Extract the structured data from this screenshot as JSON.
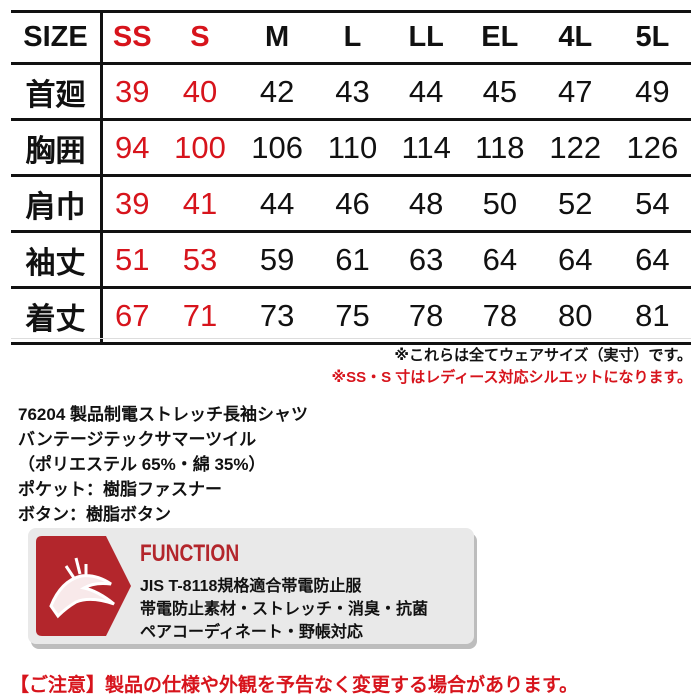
{
  "table": {
    "header": {
      "label": "SIZE",
      "sizes": [
        "SS",
        "S",
        "M",
        "L",
        "LL",
        "EL",
        "4L",
        "5L"
      ]
    },
    "rows": [
      {
        "label": "首廻",
        "values": [
          "39",
          "40",
          "42",
          "43",
          "44",
          "45",
          "47",
          "49"
        ]
      },
      {
        "label": "胸囲",
        "values": [
          "94",
          "100",
          "106",
          "110",
          "114",
          "118",
          "122",
          "126"
        ]
      },
      {
        "label": "肩巾",
        "values": [
          "39",
          "41",
          "44",
          "46",
          "48",
          "50",
          "52",
          "54"
        ]
      },
      {
        "label": "袖丈",
        "values": [
          "51",
          "53",
          "59",
          "61",
          "63",
          "64",
          "64",
          "64"
        ]
      },
      {
        "label": "着丈",
        "values": [
          "67",
          "71",
          "73",
          "75",
          "78",
          "78",
          "80",
          "81"
        ]
      }
    ]
  },
  "notes": {
    "note1": "※これらは全てウェアサイズ（実寸）です。",
    "note2": "※SS・S 寸はレディース対応シルエットになります。"
  },
  "spec": [
    "76204 製品制電ストレッチ長袖シャツ",
    "バンテージテックサマーツイル",
    "（ポリエステル 65%・綿 35%）",
    "ポケット：樹脂ファスナー",
    "ボタン：樹脂ボタン"
  ],
  "function": {
    "title": "FUNCTION",
    "lines": [
      "JIS T-8118規格適合帯電防止服",
      "帯電防止素材・ストレッチ・消臭・抗菌",
      "ペアコーディネート・野帳対応"
    ],
    "icon": "dragon-icon"
  },
  "caution": "【ご注意】製品の仕様や外観を予告なく変更する場合があります。",
  "colors": {
    "accent": "#d7141c",
    "badge": "#b3262c"
  }
}
